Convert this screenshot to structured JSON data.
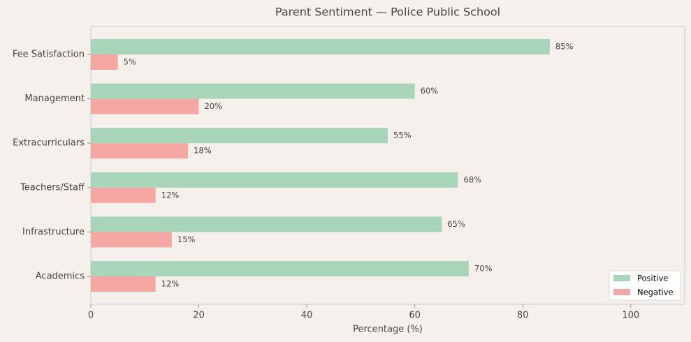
{
  "chart_data": {
    "type": "hbar-grouped",
    "title": "Parent Sentiment — Police Public School",
    "xlabel": "Percentage (%)",
    "categories": [
      "Fee Satisfaction",
      "Management",
      "Extracurriculars",
      "Teachers/Staff",
      "Infrastructure",
      "Academics"
    ],
    "series": [
      {
        "name": "Positive",
        "color": "#a8d5ba",
        "values": [
          85,
          60,
          55,
          68,
          65,
          70
        ],
        "value_labels": [
          "85%",
          "60%",
          "55%",
          "68%",
          "65%",
          "70%"
        ]
      },
      {
        "name": "Negative",
        "color": "#f4a7a3",
        "values": [
          5,
          20,
          18,
          12,
          15,
          12
        ],
        "value_labels": [
          "5%",
          "20%",
          "18%",
          "12%",
          "15%",
          "12%"
        ]
      }
    ],
    "xlim": [
      0,
      110
    ],
    "xticks": [
      0,
      20,
      40,
      60,
      80,
      100
    ],
    "legend": "lower right"
  }
}
